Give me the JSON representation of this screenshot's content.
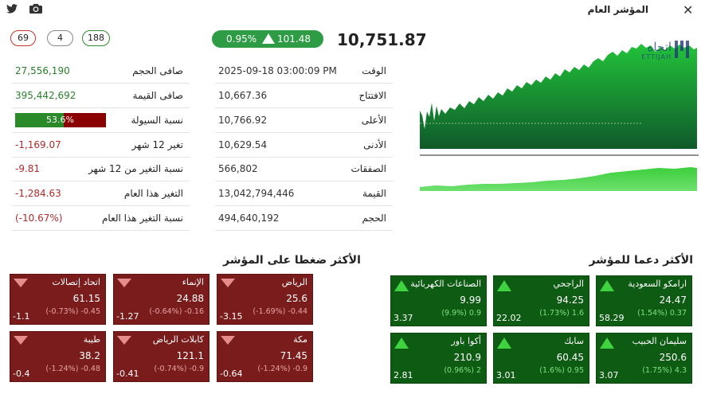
{
  "header": {
    "title": "المؤشر العام",
    "close_icon": "close-icon",
    "twitter_icon": "twitter-icon",
    "camera_icon": "camera-icon"
  },
  "badges": {
    "down": "69",
    "flat": "4",
    "up": "188"
  },
  "index": {
    "value": "10,751.87",
    "change_points": "101.48",
    "change_percent": "0.95%"
  },
  "details": [
    {
      "label": "الوقت",
      "value": "2025-09-18 03:00:09 PM"
    },
    {
      "label": "الافتتاح",
      "value": "10,667.36"
    },
    {
      "label": "الأعلى",
      "value": "10,766.92"
    },
    {
      "label": "الأدنى",
      "value": "10,629.54"
    },
    {
      "label": "الصفقات",
      "value": "566,802"
    },
    {
      "label": "القيمة",
      "value": "13,042,794,446"
    },
    {
      "label": "الحجم",
      "value": "494,640,192"
    }
  ],
  "stats": [
    {
      "label": "صافى الحجم",
      "value": "27,556,190",
      "tone": "green"
    },
    {
      "label": "صافى القيمة",
      "value": "395,442,692",
      "tone": "green"
    },
    {
      "label": "نسبة السيولة",
      "value": "53.6%",
      "tone": "bar",
      "level": 0.536
    },
    {
      "label": "تغير 12 شهر",
      "value": "-1,169.07",
      "tone": "red"
    },
    {
      "label": "نسبة التغير من 12 شهر",
      "value": "-9.81",
      "tone": "red"
    },
    {
      "label": "التغير هذا العام",
      "value": "-1,284.63",
      "tone": "red"
    },
    {
      "label": "نسبة التغير هذا العام",
      "value": "(-10.67%)",
      "tone": "red"
    }
  ],
  "chart_logo": {
    "arabic": "اتجاه",
    "latin": "ETTIJAH"
  },
  "support_title": "الأكثر دعما للمؤشر",
  "pressure_title": "الأكثر ضغطا على المؤشر",
  "support": [
    {
      "name": "ارامكو السعودية",
      "price": "24.47",
      "chg": "(1.54%) 0.37",
      "eff": "58.29"
    },
    {
      "name": "الراجحي",
      "price": "94.25",
      "chg": "(1.73%) 1.6",
      "eff": "22.02"
    },
    {
      "name": "الصناعات الكهربائية",
      "price": "9.99",
      "chg": "(9.9%) 0.9",
      "eff": "3.37"
    },
    {
      "name": "سليمان الحبيب",
      "price": "250.6",
      "chg": "(1.75%) 4.3",
      "eff": "3.07"
    },
    {
      "name": "سابك",
      "price": "60.45",
      "chg": "(1.6%) 0.95",
      "eff": "3.01"
    },
    {
      "name": "أكوا باور",
      "price": "210.9",
      "chg": "(0.96%) 2",
      "eff": "2.81"
    }
  ],
  "pressure": [
    {
      "name": "الرياض",
      "price": "25.6",
      "chg": "(-1.69%) -0.44",
      "eff": "-3.15"
    },
    {
      "name": "الإنماء",
      "price": "24.88",
      "chg": "(-0.64%) -0.16",
      "eff": "-1.27"
    },
    {
      "name": "اتحاد إتصالات",
      "price": "61.15",
      "chg": "(-0.73%) -0.45",
      "eff": "-1.1"
    },
    {
      "name": "مكة",
      "price": "71.45",
      "chg": "(-1.24%) -0.9",
      "eff": "-0.64"
    },
    {
      "name": "كابلات الرياض",
      "price": "121.1",
      "chg": "(-0.74%) -0.9",
      "eff": "-0.41"
    },
    {
      "name": "طيبة",
      "price": "38.2",
      "chg": "(-1.24%) -0.48",
      "eff": "-0.4"
    }
  ]
}
